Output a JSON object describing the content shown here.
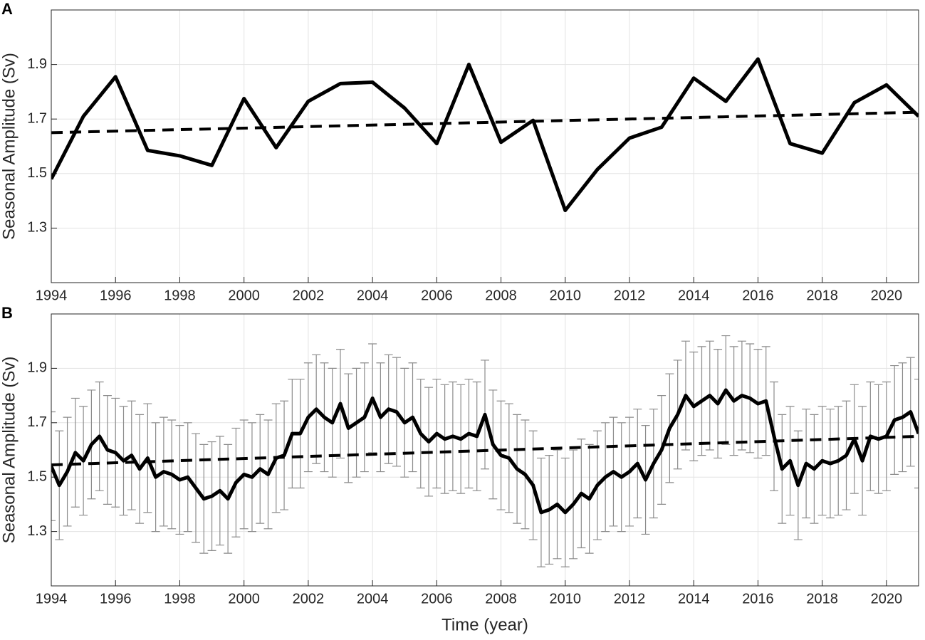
{
  "chart_data": [
    {
      "type": "line",
      "panel_label": "A",
      "ylabel": "Seasonal Amplitude (Sv)",
      "xlim": [
        1994,
        2021
      ],
      "ylim": [
        1.1,
        2.1
      ],
      "xticks": [
        1994,
        1996,
        1998,
        2000,
        2002,
        2004,
        2006,
        2008,
        2010,
        2012,
        2014,
        2016,
        2018,
        2020
      ],
      "yticks": [
        1.3,
        1.5,
        1.7,
        1.9
      ],
      "grid": true,
      "series": [
        {
          "color": "#000000",
          "style": "solid",
          "x": [
            1994,
            1995,
            1996,
            1997,
            1998,
            1999,
            2000,
            2001,
            2002,
            2003,
            2004,
            2005,
            2006,
            2007,
            2008,
            2009,
            2010,
            2011,
            2012,
            2013,
            2014,
            2015,
            2016,
            2017,
            2018,
            2019,
            2020,
            2021
          ],
          "values": [
            1.48,
            1.71,
            1.855,
            1.585,
            1.565,
            1.53,
            1.775,
            1.595,
            1.765,
            1.83,
            1.835,
            1.74,
            1.61,
            1.9,
            1.615,
            1.695,
            1.365,
            1.515,
            1.63,
            1.67,
            1.85,
            1.765,
            1.92,
            1.61,
            1.575,
            1.76,
            1.825,
            1.71
          ]
        },
        {
          "color": "#000000",
          "style": "dashed",
          "x": [
            1994,
            2021
          ],
          "values": [
            1.65,
            1.725
          ]
        }
      ]
    },
    {
      "type": "line",
      "panel_label": "B",
      "ylabel": "Seasonal Amplitude (Sv)",
      "xlabel": "Time (year)",
      "xlim": [
        1994,
        2021
      ],
      "ylim": [
        1.1,
        2.1
      ],
      "xticks": [
        1994,
        1996,
        1998,
        2000,
        2002,
        2004,
        2006,
        2008,
        2010,
        2012,
        2014,
        2016,
        2018,
        2020
      ],
      "yticks": [
        1.3,
        1.5,
        1.7,
        1.9
      ],
      "grid": true,
      "series": [
        {
          "color": "#000000",
          "style": "solid",
          "error": 0.2,
          "error_color": "#8c8c8c",
          "x": [
            1994,
            1994.25,
            1994.5,
            1994.75,
            1995,
            1995.25,
            1995.5,
            1995.75,
            1996,
            1996.25,
            1996.5,
            1996.75,
            1997,
            1997.25,
            1997.5,
            1997.75,
            1998,
            1998.25,
            1998.5,
            1998.75,
            1999,
            1999.25,
            1999.5,
            1999.75,
            2000,
            2000.25,
            2000.5,
            2000.75,
            2001,
            2001.25,
            2001.5,
            2001.75,
            2002,
            2002.25,
            2002.5,
            2002.75,
            2003,
            2003.25,
            2003.5,
            2003.75,
            2004,
            2004.25,
            2004.5,
            2004.75,
            2005,
            2005.25,
            2005.5,
            2005.75,
            2006,
            2006.25,
            2006.5,
            2006.75,
            2007,
            2007.25,
            2007.5,
            2007.75,
            2008,
            2008.25,
            2008.5,
            2008.75,
            2009,
            2009.25,
            2009.5,
            2009.75,
            2010,
            2010.25,
            2010.5,
            2010.75,
            2011,
            2011.25,
            2011.5,
            2011.75,
            2012,
            2012.25,
            2012.5,
            2012.75,
            2013,
            2013.25,
            2013.5,
            2013.75,
            2014,
            2014.25,
            2014.5,
            2014.75,
            2015,
            2015.25,
            2015.5,
            2015.75,
            2016,
            2016.25,
            2016.5,
            2016.75,
            2017,
            2017.25,
            2017.5,
            2017.75,
            2018,
            2018.25,
            2018.5,
            2018.75,
            2019,
            2019.25,
            2019.5,
            2019.75,
            2020,
            2020.25,
            2020.5,
            2020.75,
            2021
          ],
          "values": [
            1.54,
            1.47,
            1.52,
            1.59,
            1.56,
            1.62,
            1.65,
            1.6,
            1.59,
            1.56,
            1.58,
            1.53,
            1.57,
            1.5,
            1.52,
            1.51,
            1.49,
            1.5,
            1.46,
            1.42,
            1.43,
            1.45,
            1.42,
            1.48,
            1.51,
            1.5,
            1.53,
            1.51,
            1.57,
            1.58,
            1.66,
            1.66,
            1.72,
            1.75,
            1.72,
            1.7,
            1.77,
            1.68,
            1.7,
            1.72,
            1.79,
            1.72,
            1.75,
            1.74,
            1.7,
            1.72,
            1.66,
            1.63,
            1.66,
            1.64,
            1.65,
            1.64,
            1.66,
            1.65,
            1.73,
            1.62,
            1.58,
            1.57,
            1.53,
            1.51,
            1.47,
            1.37,
            1.38,
            1.4,
            1.37,
            1.4,
            1.44,
            1.42,
            1.47,
            1.5,
            1.52,
            1.5,
            1.52,
            1.55,
            1.49,
            1.55,
            1.6,
            1.68,
            1.73,
            1.8,
            1.76,
            1.78,
            1.8,
            1.77,
            1.82,
            1.78,
            1.8,
            1.79,
            1.77,
            1.78,
            1.65,
            1.53,
            1.56,
            1.47,
            1.55,
            1.53,
            1.56,
            1.55,
            1.56,
            1.58,
            1.64,
            1.56,
            1.65,
            1.64,
            1.65,
            1.71,
            1.72,
            1.74,
            1.66
          ]
        },
        {
          "color": "#000000",
          "style": "dashed",
          "x": [
            1994,
            2021
          ],
          "values": [
            1.545,
            1.65
          ]
        }
      ]
    }
  ]
}
